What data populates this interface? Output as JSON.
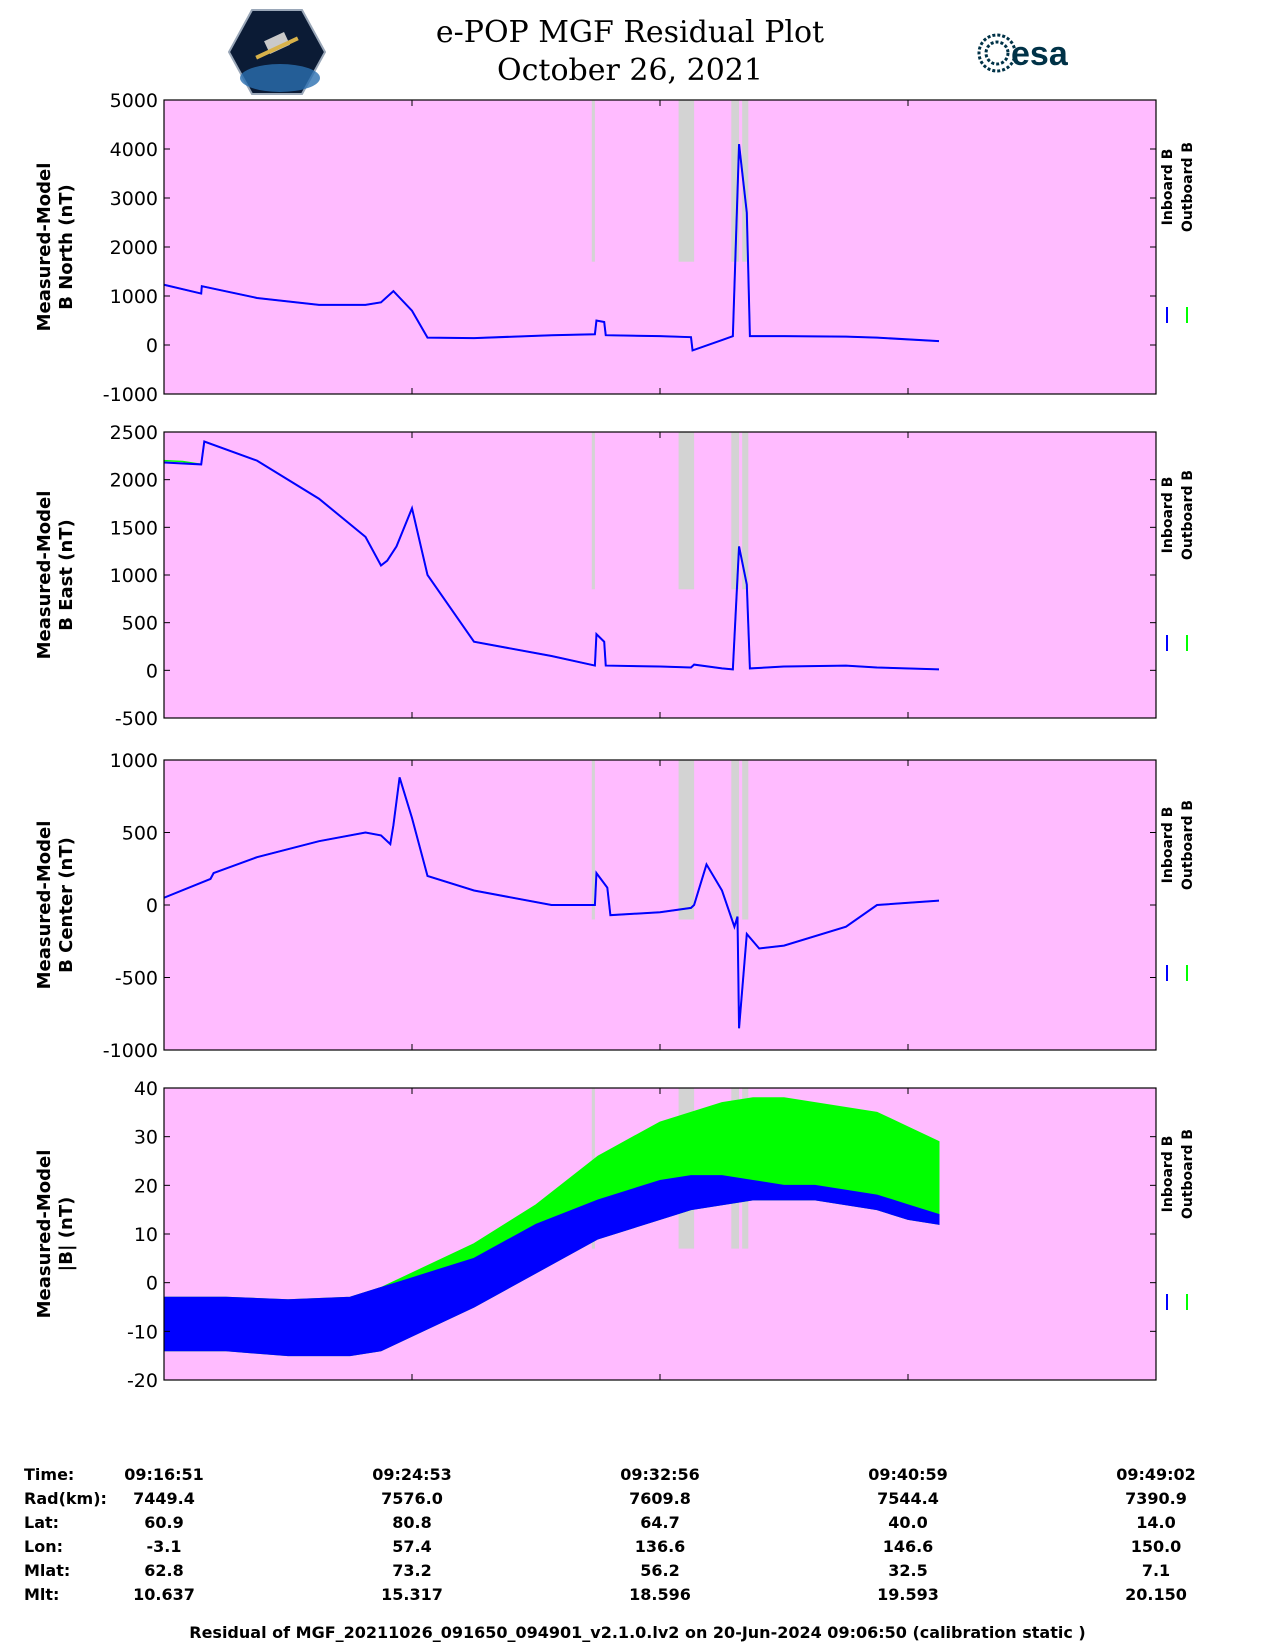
{
  "header": {
    "title": "e-POP MGF Residual Plot",
    "date": "October 26, 2021",
    "left_logo": "CASSIOPE satellite hexagon logo",
    "right_logo": "esa",
    "right_logo_text": "esa"
  },
  "colors": {
    "background": "#ffbbff",
    "gap_shade": "#d3d3d3",
    "inboard": "#0000ff",
    "outboard": "#00ff00"
  },
  "legend": {
    "inboard": "Inboard B",
    "outboard": "Outboard B"
  },
  "chart_data": [
    {
      "type": "line",
      "ylabel": [
        "Measured-Model",
        "B North (nT)"
      ],
      "ylim": [
        -1000,
        5000
      ],
      "yticks": [
        "5000",
        "4000",
        "3000",
        "2000",
        "1000",
        "0",
        "-1000"
      ],
      "ytick_values": [
        5000,
        4000,
        3000,
        2000,
        1000,
        0,
        -1000
      ],
      "gaps": [
        [
          13.8,
          13.9
        ],
        [
          16.6,
          17.1
        ],
        [
          18.3,
          18.55
        ],
        [
          18.65,
          18.85
        ]
      ],
      "series": [
        {
          "name": "Inboard B",
          "x": [
            0,
            1.2,
            1.22,
            3,
            5,
            6.5,
            7.0,
            7.4,
            8.0,
            8.5,
            10,
            12.5,
            13.9,
            13.95,
            14.2,
            14.25,
            16.0,
            17.0,
            17.05,
            18.0,
            18.35,
            18.55,
            18.8,
            18.9,
            20,
            22,
            23,
            25
          ],
          "y": [
            1230,
            1050,
            1200,
            960,
            820,
            820,
            870,
            1100,
            700,
            150,
            140,
            200,
            220,
            500,
            470,
            200,
            180,
            160,
            -110,
            100,
            180,
            4100,
            2700,
            180,
            180,
            170,
            150,
            80
          ]
        },
        {
          "name": "Outboard B",
          "x": [
            0,
            1.2,
            1.22,
            3,
            5,
            6.5,
            7.0,
            7.4,
            8.0,
            8.5,
            10,
            12.5,
            13.9,
            13.95,
            14.2,
            14.25,
            16.0,
            17.0,
            17.05,
            18.0,
            18.35,
            18.55,
            18.8,
            18.9,
            20,
            22,
            23,
            25
          ],
          "y": [
            1230,
            1050,
            1200,
            960,
            820,
            820,
            870,
            1100,
            700,
            150,
            140,
            200,
            220,
            500,
            470,
            200,
            180,
            160,
            -110,
            100,
            180,
            4100,
            2700,
            180,
            180,
            170,
            150,
            80
          ]
        }
      ]
    },
    {
      "type": "line",
      "ylabel": [
        "Measured-Model",
        "B East (nT)"
      ],
      "ylim": [
        -500,
        2500
      ],
      "yticks": [
        "2500",
        "2000",
        "1500",
        "1000",
        "500",
        "0",
        "-500"
      ],
      "ytick_values": [
        2500,
        2000,
        1500,
        1000,
        500,
        0,
        -500
      ],
      "gaps": [
        [
          13.8,
          13.9
        ],
        [
          16.6,
          17.1
        ],
        [
          18.3,
          18.55
        ],
        [
          18.65,
          18.85
        ]
      ],
      "series": [
        {
          "name": "Inboard B",
          "x": [
            0,
            1.2,
            1.3,
            3,
            5,
            6.5,
            7.0,
            7.2,
            7.5,
            8.0,
            8.5,
            10,
            12.5,
            13.9,
            13.95,
            14.2,
            14.25,
            16.0,
            17.0,
            17.1,
            18.0,
            18.35,
            18.55,
            18.8,
            18.9,
            20,
            22,
            23,
            25
          ],
          "y": [
            2180,
            2160,
            2400,
            2200,
            1800,
            1400,
            1100,
            1150,
            1300,
            1700,
            1000,
            300,
            150,
            50,
            380,
            300,
            50,
            40,
            30,
            60,
            20,
            10,
            1300,
            900,
            20,
            40,
            50,
            30,
            10
          ]
        },
        {
          "name": "Outboard B",
          "x": [
            0,
            0.6,
            1.2,
            1.3,
            3,
            5,
            6.5,
            7.0,
            7.2,
            7.5,
            8.0,
            8.5,
            10,
            12.5,
            13.9,
            13.95,
            14.2,
            14.25,
            16.0,
            17.0,
            17.1,
            18.0,
            18.35,
            18.55,
            18.8,
            18.9,
            20,
            22,
            23,
            25
          ],
          "y": [
            2200,
            2190,
            2160,
            2400,
            2200,
            1800,
            1400,
            1100,
            1150,
            1300,
            1700,
            1000,
            300,
            150,
            50,
            380,
            300,
            50,
            40,
            30,
            60,
            20,
            10,
            1300,
            900,
            20,
            40,
            50,
            30,
            10
          ]
        }
      ]
    },
    {
      "type": "line",
      "ylabel": [
        "Measured-Model",
        "B Center (nT)"
      ],
      "ylim": [
        -1000,
        1000
      ],
      "yticks": [
        "1000",
        "500",
        "0",
        "-500",
        "-1000"
      ],
      "ytick_values": [
        1000,
        500,
        0,
        -500,
        -1000
      ],
      "gaps": [
        [
          13.8,
          13.9
        ],
        [
          16.6,
          17.1
        ],
        [
          18.3,
          18.55
        ],
        [
          18.65,
          18.85
        ]
      ],
      "series": [
        {
          "name": "Inboard B",
          "x": [
            0,
            1.5,
            1.6,
            3,
            5,
            6.5,
            7.0,
            7.3,
            7.4,
            7.6,
            8.0,
            8.5,
            10,
            12.5,
            13.9,
            13.95,
            14.3,
            14.4,
            16.0,
            17.0,
            17.1,
            17.5,
            18.0,
            18.4,
            18.5,
            18.55,
            18.8,
            19.2,
            20,
            22,
            23,
            25
          ],
          "y": [
            50,
            180,
            220,
            330,
            440,
            500,
            480,
            420,
            550,
            880,
            600,
            200,
            100,
            0,
            0,
            220,
            120,
            -70,
            -50,
            -20,
            0,
            280,
            100,
            -150,
            -80,
            -850,
            -200,
            -300,
            -280,
            -150,
            0,
            30
          ]
        },
        {
          "name": "Outboard B",
          "x": [
            0,
            1.5,
            1.6,
            3,
            5,
            6.5,
            7.0,
            7.3,
            7.4,
            7.6,
            8.0,
            8.5,
            10,
            12.5,
            13.9,
            13.95,
            14.3,
            14.4,
            16.0,
            17.0,
            17.1,
            17.5,
            18.0,
            18.4,
            18.5,
            18.55,
            18.8,
            19.2,
            20,
            22,
            23,
            25
          ],
          "y": [
            50,
            180,
            220,
            330,
            440,
            500,
            480,
            420,
            550,
            880,
            600,
            200,
            100,
            0,
            0,
            220,
            120,
            -70,
            -50,
            -20,
            0,
            280,
            100,
            -150,
            -80,
            -850,
            -200,
            -300,
            -280,
            -150,
            0,
            30
          ]
        }
      ]
    },
    {
      "type": "area",
      "ylabel": [
        "Measured-Model",
        "|B| (nT)"
      ],
      "ylim": [
        -20,
        40
      ],
      "yticks": [
        "40",
        "30",
        "20",
        "10",
        "0",
        "-10",
        "-20"
      ],
      "ytick_values": [
        40,
        30,
        20,
        10,
        0,
        -10,
        -20
      ],
      "gaps": [
        [
          13.8,
          13.9
        ],
        [
          16.6,
          17.1
        ],
        [
          18.3,
          18.55
        ],
        [
          18.65,
          18.85
        ]
      ],
      "series": [
        {
          "name": "Inboard B",
          "x": [
            0,
            2,
            4,
            6,
            7,
            8,
            10,
            12,
            14,
            16,
            17,
            18,
            19,
            20,
            21,
            22,
            23,
            24,
            25
          ],
          "upper": [
            -3,
            -3,
            -3.5,
            -3,
            -1,
            1,
            5,
            12,
            17,
            21,
            22,
            22,
            21,
            20,
            20,
            19,
            18,
            16,
            14
          ],
          "lower": [
            -14,
            -14,
            -15,
            -15,
            -14,
            -11,
            -5,
            2,
            9,
            13,
            15,
            16,
            17,
            17,
            17,
            16,
            15,
            13,
            12
          ]
        },
        {
          "name": "Outboard B",
          "x": [
            0,
            2,
            4,
            6,
            7,
            8,
            10,
            12,
            14,
            16,
            17,
            18,
            19,
            20,
            21,
            22,
            23,
            24,
            25
          ],
          "upper": [
            -3,
            -3,
            -3.5,
            -3,
            -1,
            2,
            8,
            16,
            26,
            33,
            35,
            37,
            38,
            38,
            37,
            36,
            35,
            32,
            29
          ],
          "lower": [
            -14,
            -14,
            -15,
            -15,
            -14,
            -11,
            -5,
            2,
            9,
            13,
            15,
            16,
            17,
            17,
            17,
            16,
            15,
            13,
            12
          ]
        }
      ]
    }
  ],
  "x_axis": {
    "ticks": [
      0,
      8,
      16,
      24,
      32
    ],
    "columns": [
      "09:16:51",
      "09:24:53",
      "09:32:56",
      "09:40:59",
      "09:49:02"
    ]
  },
  "info_rows": [
    {
      "label": "Time:",
      "values": [
        "09:16:51",
        "09:24:53",
        "09:32:56",
        "09:40:59",
        "09:49:02"
      ]
    },
    {
      "label": "Rad(km):",
      "values": [
        "7449.4",
        "7576.0",
        "7609.8",
        "7544.4",
        "7390.9"
      ]
    },
    {
      "label": "Lat:",
      "values": [
        "60.9",
        "80.8",
        "64.7",
        "40.0",
        "14.0"
      ]
    },
    {
      "label": "Lon:",
      "values": [
        "-3.1",
        "57.4",
        "136.6",
        "146.6",
        "150.0"
      ]
    },
    {
      "label": "Mlat:",
      "values": [
        "62.8",
        "73.2",
        "56.2",
        "32.5",
        "7.1"
      ]
    },
    {
      "label": "Mlt:",
      "values": [
        "10.637",
        "15.317",
        "18.596",
        "19.593",
        "20.150"
      ]
    }
  ],
  "footer": "Residual of MGF_20211026_091650_094901_v2.1.0.lv2 on 20-Jun-2024 09:06:50 (calibration static )"
}
